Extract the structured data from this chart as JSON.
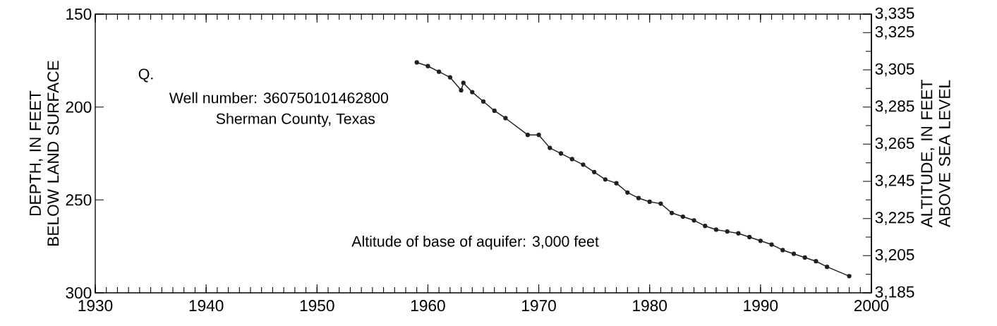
{
  "chart_data": {
    "type": "line",
    "ylabel": "DEPTH, IN FEET BELOW LAND SURFACE",
    "y2label": "ALTITUDE, IN FEET ABOVE SEA LEVEL",
    "annotations": [
      "Q.",
      "Well number: 360750101462800",
      "Sherman County, Texas",
      "Altitude of base of aquifer: 3,000 feet"
    ],
    "x": [
      1959,
      1960,
      1961,
      1962,
      1963,
      1963.2,
      1964,
      1965,
      1966,
      1967,
      1969,
      1970,
      1971,
      1972,
      1973,
      1974,
      1975,
      1976,
      1977,
      1978,
      1979,
      1980,
      1981,
      1982,
      1983,
      1984,
      1985,
      1986,
      1987,
      1988,
      1989,
      1990,
      1991,
      1992,
      1993,
      1994,
      1995,
      1996,
      1998
    ],
    "series": [
      {
        "color": "#231f20",
        "values": [
          176,
          178,
          181,
          184,
          191,
          187,
          192,
          197,
          202,
          206,
          215,
          215,
          222,
          225,
          228,
          231,
          235,
          239,
          241,
          246,
          249,
          251,
          252,
          257,
          259,
          261,
          264,
          266,
          267,
          268,
          270,
          272,
          274,
          277,
          279,
          281,
          283,
          286,
          291
        ]
      }
    ],
    "xlim": [
      1930,
      2000
    ],
    "xticks": [
      1930,
      1940,
      1950,
      1960,
      1970,
      1980,
      1990,
      2000
    ],
    "ylim": [
      300,
      150
    ],
    "yticks": [
      150,
      200,
      250,
      300
    ],
    "y2lim": [
      3185,
      3335
    ],
    "y2ticks": [
      {
        "value": 3335,
        "label": "3,335"
      },
      {
        "value": 3325,
        "label": "3,325"
      },
      {
        "value": 3305,
        "label": "3,305"
      },
      {
        "value": 3285,
        "label": "3,285"
      },
      {
        "value": 3265,
        "label": "3,265"
      },
      {
        "value": 3245,
        "label": "3,245"
      },
      {
        "value": 3225,
        "label": "3,225"
      },
      {
        "value": 3205,
        "label": "3,205"
      },
      {
        "value": 3185,
        "label": "3,185"
      }
    ],
    "marker": "circle",
    "line_style": "solid"
  }
}
